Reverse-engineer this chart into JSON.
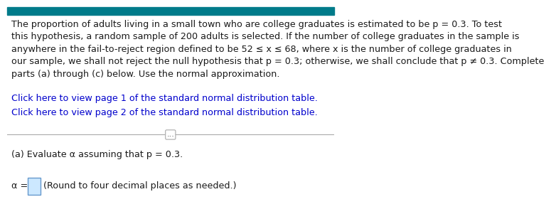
{
  "bg_color": "#ffffff",
  "top_bar_color": "#007b8a",
  "top_bar_height": 0.04,
  "main_text": "The proportion of adults living in a small town who are college graduates is estimated to be p = 0.3. To test\nthis hypothesis, a random sample of 200 adults is selected. If the number of college graduates in the sample is\nanywhere in the fail-to-reject region defined to be 52 ≤ x ≤ 68, where x is the number of college graduates in\nour sample, we shall not reject the null hypothesis that p = 0.3; otherwise, we shall conclude that p ≠ 0.3. Complete\nparts (a) through (c) below. Use the normal approximation.",
  "link1": "Click here to view page 1 of the standard normal distribution table.",
  "link2": "Click here to view page 2 of the standard normal distribution table.",
  "link_color": "#0000cc",
  "main_text_color": "#1a1a1a",
  "main_font_size": 9.2,
  "part_a_text": "(a) Evaluate α assuming that p = 0.3.",
  "alpha_label": "α =",
  "round_text": "(Round to four decimal places as needed.)",
  "divider_color": "#aaaaaa",
  "dots_text": "...",
  "input_box_color": "#cce8ff",
  "input_box_edge_color": "#6699cc",
  "text_color_dark": "#1a1a1a"
}
